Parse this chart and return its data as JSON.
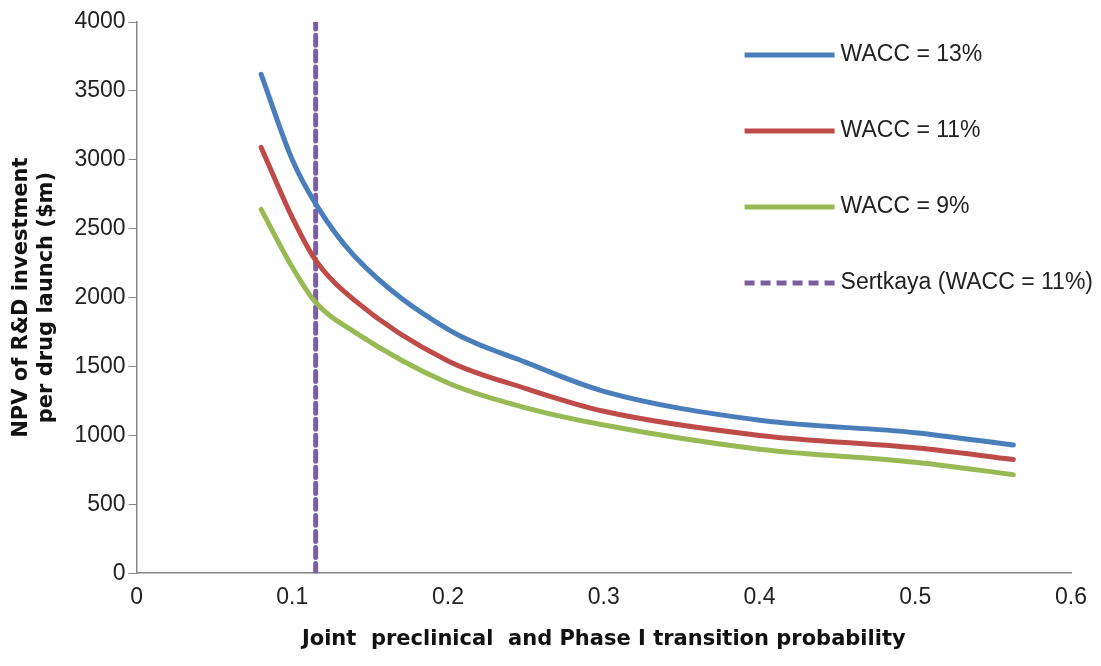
{
  "chart_data": {
    "type": "line",
    "xlabel": "Joint  preclinical  and Phase I transition probability",
    "ylabel": "NPV of R&D investment per drug launch ($m)",
    "x": [
      0.08,
      0.1,
      0.115,
      0.14,
      0.2,
      0.25,
      0.3,
      0.4,
      0.5,
      0.563
    ],
    "series": [
      {
        "name": "WACC = 13%",
        "color": "#4a7ebb",
        "values": [
          3620,
          3000,
          2680,
          2300,
          1770,
          1530,
          1320,
          1110,
          1020,
          930
        ]
      },
      {
        "name": "WACC = 11%",
        "color": "#be4b48",
        "values": [
          3090,
          2580,
          2270,
          1980,
          1540,
          1340,
          1175,
          1000,
          910,
          825
        ]
      },
      {
        "name": "WACC = 9%",
        "color": "#98b954",
        "values": [
          2640,
          2220,
          1965,
          1750,
          1380,
          1200,
          1075,
          900,
          805,
          715
        ]
      },
      {
        "name": "Sertkaya (WACC = 11%)",
        "color": "#7d5fa0",
        "line_style": "dashed",
        "x": [
          0.115,
          0.115
        ],
        "values": [
          0,
          4000
        ]
      }
    ],
    "xlim": [
      0,
      0.6
    ],
    "xticks": [
      0,
      0.1,
      0.2,
      0.3,
      0.4,
      0.5,
      0.6
    ],
    "ylim": [
      0,
      4000
    ],
    "yticks": [
      0,
      500,
      1000,
      1500,
      2000,
      2500,
      3000,
      3500,
      4000
    ],
    "grid": false,
    "legend": "top right",
    "marker": "none",
    "line_style": "solid"
  }
}
